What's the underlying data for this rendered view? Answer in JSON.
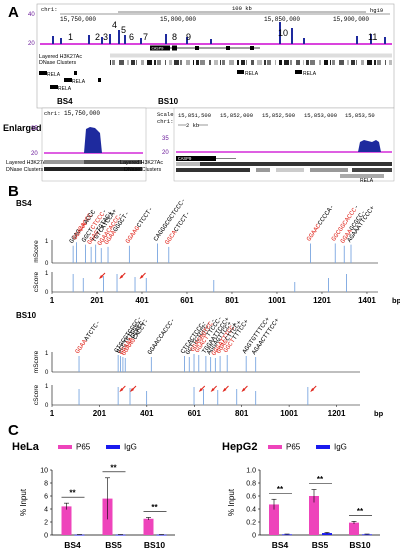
{
  "panels": {
    "a": "A",
    "b": "B",
    "c": "C"
  },
  "track_a": {
    "chr": "chr1:",
    "scale": "100 kb",
    "build": "hg19",
    "ticks": [
      "15,750,000",
      "15,800,000",
      "15,850,000",
      "15,900,000"
    ],
    "ymax": "40",
    "ymin": "20",
    "site_numbers": [
      "1",
      "2",
      "3",
      "4",
      "5",
      "6",
      "7",
      "8",
      "9",
      "10",
      "11"
    ],
    "gene": "CASP9",
    "layered": "Layered H3K27Ac",
    "dnase": "DNase Clusters",
    "rela_labels": [
      "RELA",
      "RELA",
      "RELA",
      "RELA",
      "RELA"
    ]
  },
  "enlarged": {
    "label": "Enlarged",
    "bs4": {
      "title": "BS4",
      "chr": "chr1:",
      "tick": "15,750,000",
      "ymax": "35",
      "ymin": "20",
      "layered": "Layered H3K27Ac",
      "dnase": "DNase Clusters"
    },
    "bs10": {
      "title": "BS10",
      "scale_label": "Scale",
      "chr": "chr1:",
      "kb": "2 kb",
      "ticks": [
        "15,851,500",
        "15,852,000",
        "15,852,500",
        "15,853,000",
        "15,853,50"
      ],
      "ymax": "35",
      "ymin": "20",
      "gene": "CASP9",
      "layered": "Layered H3K27Ac",
      "dnase": "DNase Clusters",
      "rela": "RELA"
    }
  },
  "motif_b": {
    "bs4": {
      "title": "BS4",
      "mscore": "mScore",
      "cscore": "cScore",
      "bp": "bp",
      "xticks": [
        "1",
        "201",
        "401",
        "601",
        "801",
        "1001",
        "1201",
        "1401"
      ],
      "y_m": [
        "1",
        "0"
      ],
      "y_c": [
        "1",
        "0"
      ],
      "seqs": [
        {
          "black": "GGAG",
          "red": "CACCC",
          "tail": "-"
        },
        {
          "black": "",
          "red": "GGAAA",
          "tail": "ACCC"
        },
        {
          "black": "GGCT",
          "red": "CTCCC",
          "tail": "-"
        },
        {
          "black": "",
          "red": "GGAG",
          "tail": "TGTAC+"
        },
        {
          "black": "TGTCA",
          "red": "",
          "tail": "TCCA+"
        },
        {
          "black": "",
          "red": "GGAACACCC",
          "tail": "-"
        },
        {
          "black": "",
          "red": "GGAA",
          "tail": "GGGCT-"
        },
        {
          "black": "",
          "red": "GGAAG",
          "tail": "CTCCT-"
        },
        {
          "black": "CAGGGCG",
          "red": "",
          "tail": "CTCCC-"
        },
        {
          "black": "",
          "red": "GGCA",
          "tail": "CTCCT-"
        },
        {
          "black": "",
          "red": "GGAAC",
          "tail": "CCCCA-"
        },
        {
          "black": "",
          "red": "GGCGGCACCC",
          "tail": "-"
        },
        {
          "black": "",
          "red": "GGAA",
          "tail": "GCGCC-"
        },
        {
          "black": "AGAAA",
          "red": "",
          "tail": "TTCCC+"
        }
      ]
    },
    "bs10": {
      "title": "BS10",
      "mscore": "mScore",
      "cscore": "cScore",
      "bp": "bp",
      "xticks": [
        "1",
        "201",
        "401",
        "601",
        "801",
        "1001",
        "1201"
      ],
      "y_m": [
        "1",
        "0"
      ],
      "y_c": [
        "1",
        "0"
      ],
      "seqs": [
        {
          "black": "",
          "red": "GGAA",
          "tail": "ATCTC-"
        },
        {
          "black": "GTGCG",
          "red": "",
          "tail": "TCCCC-"
        },
        {
          "black": "GCCT",
          "red": "",
          "tail": "CTCCC-"
        },
        {
          "black": "",
          "red": "GGAAA",
          "tail": "GCACC-"
        },
        {
          "black": "",
          "red": "GGAAG",
          "tail": "CACCT-"
        },
        {
          "black": "GGAAC",
          "red": "",
          "tail": "CACCC-"
        },
        {
          "black": "CTCA",
          "red": "",
          "tail": "CTCCC-"
        },
        {
          "black": "GCTT",
          "red": "",
          "tail": "CTCCC-"
        },
        {
          "black": "",
          "red": "GGAGAGTCC",
          "tail": "-"
        },
        {
          "black": "",
          "red": "GGACT",
          "tail": "TTCCC-"
        },
        {
          "black": "TGGA",
          "red": "",
          "tail": "ATTCCC+"
        },
        {
          "black": "AGGA",
          "red": "",
          "tail": "GTTCC+"
        },
        {
          "black": "",
          "red": "GGGATTTCC",
          "tail": "+"
        },
        {
          "black": "",
          "red": "GGAG",
          "tail": "CTTCC+"
        },
        {
          "black": "",
          "red": "GGCT",
          "tail": "TTTCC+"
        },
        {
          "black": "AGGTG",
          "red": "",
          "tail": "TTTCC+"
        },
        {
          "black": "AGAACT",
          "red": "",
          "tail": "TTCC+"
        }
      ]
    }
  },
  "colors": {
    "p65": "#ee44bb",
    "igg": "#1a1aee",
    "seq_red": "#e0261c",
    "track_blue": "#1e2a9e",
    "track_pink": "#d42ad8"
  },
  "chart_data": [
    {
      "type": "bar",
      "title": "HeLa",
      "ylabel": "% Input",
      "categories": [
        "BS4",
        "BS5",
        "BS10"
      ],
      "ylim": [
        0,
        10
      ],
      "yticks": [
        "0",
        "2",
        "4",
        "6",
        "8",
        "10"
      ],
      "legend": "top",
      "series": [
        {
          "name": "P65",
          "values": [
            4.4,
            5.6,
            2.5
          ],
          "errors": [
            0.5,
            3.2,
            0.2
          ]
        },
        {
          "name": "IgG",
          "values": [
            0.05,
            0.05,
            0.05
          ],
          "errors": [
            0.02,
            0.02,
            0.02
          ]
        }
      ],
      "annotations": [
        "**",
        "**",
        "**"
      ]
    },
    {
      "type": "bar",
      "title": "HepG2",
      "ylabel": "% Input",
      "categories": [
        "BS4",
        "BS5",
        "BS10"
      ],
      "ylim": [
        0,
        1.0
      ],
      "yticks": [
        "0",
        "0.2",
        "0.4",
        "0.6",
        "0.8",
        "1.0"
      ],
      "legend": "top",
      "series": [
        {
          "name": "P65",
          "values": [
            0.47,
            0.6,
            0.19
          ],
          "errors": [
            0.08,
            0.1,
            0.02
          ]
        },
        {
          "name": "IgG",
          "values": [
            0.01,
            0.03,
            0.01
          ],
          "errors": [
            0.005,
            0.01,
            0.005
          ]
        }
      ],
      "annotations": [
        "**",
        "**",
        "**"
      ]
    }
  ]
}
